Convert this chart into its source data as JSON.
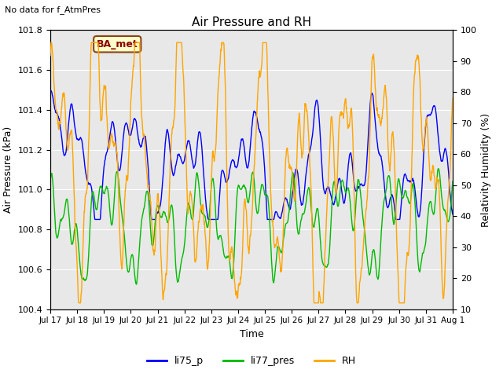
{
  "title": "Air Pressure and RH",
  "top_left_text": "No data for f_AtmPres",
  "box_label": "BA_met",
  "xlabel": "Time",
  "ylabel_left": "Air Pressure (kPa)",
  "ylabel_right": "Relativity Humidity (%)",
  "ylim_left": [
    100.4,
    101.8
  ],
  "ylim_right": [
    10,
    100
  ],
  "yticks_left": [
    100.4,
    100.6,
    100.8,
    101.0,
    101.2,
    101.4,
    101.6,
    101.8
  ],
  "yticks_right": [
    10,
    20,
    30,
    40,
    50,
    60,
    70,
    80,
    90,
    100
  ],
  "x_tick_labels": [
    "Jul 17",
    "Jul 18",
    "Jul 19",
    "Jul 20",
    "Jul 21",
    "Jul 22",
    "Jul 23",
    "Jul 24",
    "Jul 25",
    "Jul 26",
    "Jul 27",
    "Jul 28",
    "Jul 29",
    "Jul 30",
    "Jul 31",
    "Aug 1"
  ],
  "color_li75": "#0000ff",
  "color_li77": "#00bb00",
  "color_rh": "#ffa500",
  "legend_labels": [
    "li75_p",
    "li77_pres",
    "RH"
  ],
  "background_color": "#ffffff",
  "plot_bg_color": "#e8e8e8",
  "grid_color": "#ffffff",
  "n_points": 1440,
  "seed": 7
}
